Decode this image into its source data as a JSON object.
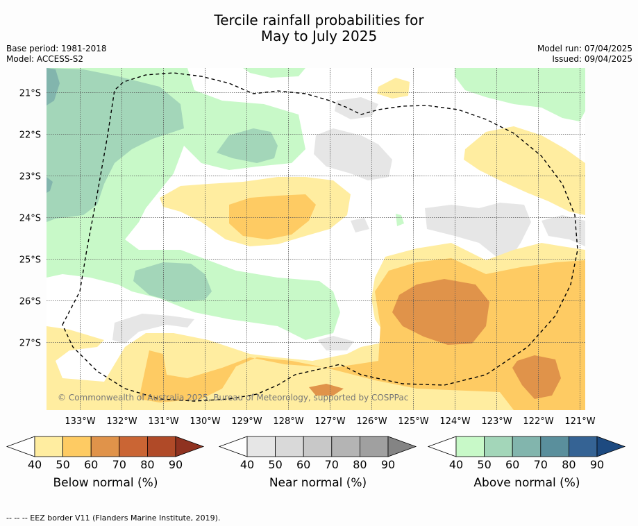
{
  "title_line1": "Tercile rainfall probabilities for",
  "title_line2": "May to July 2025",
  "base_period": "Base period: 1981-2018",
  "model": "Model: ACCESS-S2",
  "model_run": "Model run: 07/04/2025",
  "issued": "Issued: 09/04/2025",
  "copyright": "© Commonwealth of Australia 2025, Bureau of Meteorology, supported by COSPPac",
  "lon_labels": [
    "133°W",
    "132°W",
    "131°W",
    "130°W",
    "129°W",
    "128°W",
    "127°W",
    "126°W",
    "125°W",
    "124°W",
    "123°W",
    "122°W",
    "121°W"
  ],
  "lat_labels": [
    "21°S",
    "22°S",
    "23°S",
    "24°S",
    "25°S",
    "26°S",
    "27°S"
  ],
  "colorbars": [
    {
      "title": "Below normal (%)",
      "ticks": [
        "40",
        "50",
        "60",
        "70",
        "80",
        "90"
      ],
      "colors": [
        "#ffffff",
        "#ffeda0",
        "#fecb63",
        "#e0934a",
        "#ca6534",
        "#b04a28",
        "#8f3220"
      ]
    },
    {
      "title": "Near normal (%)",
      "ticks": [
        "40",
        "50",
        "60",
        "70",
        "80",
        "90"
      ],
      "colors": [
        "#ffffff",
        "#e6e6e6",
        "#d9d9d9",
        "#c8c8c8",
        "#b4b4b4",
        "#a0a0a0",
        "#848484"
      ]
    },
    {
      "title": "Above normal (%)",
      "ticks": [
        "40",
        "50",
        "60",
        "70",
        "80",
        "90"
      ],
      "colors": [
        "#ffffff",
        "#c8f9c8",
        "#a3d6b9",
        "#82b5ad",
        "#5a8f9c",
        "#356394",
        "#1d4a80"
      ]
    }
  ],
  "footer": "--  --  -- EEZ border V11 (Flanders Marine Institute, 2019)."
}
